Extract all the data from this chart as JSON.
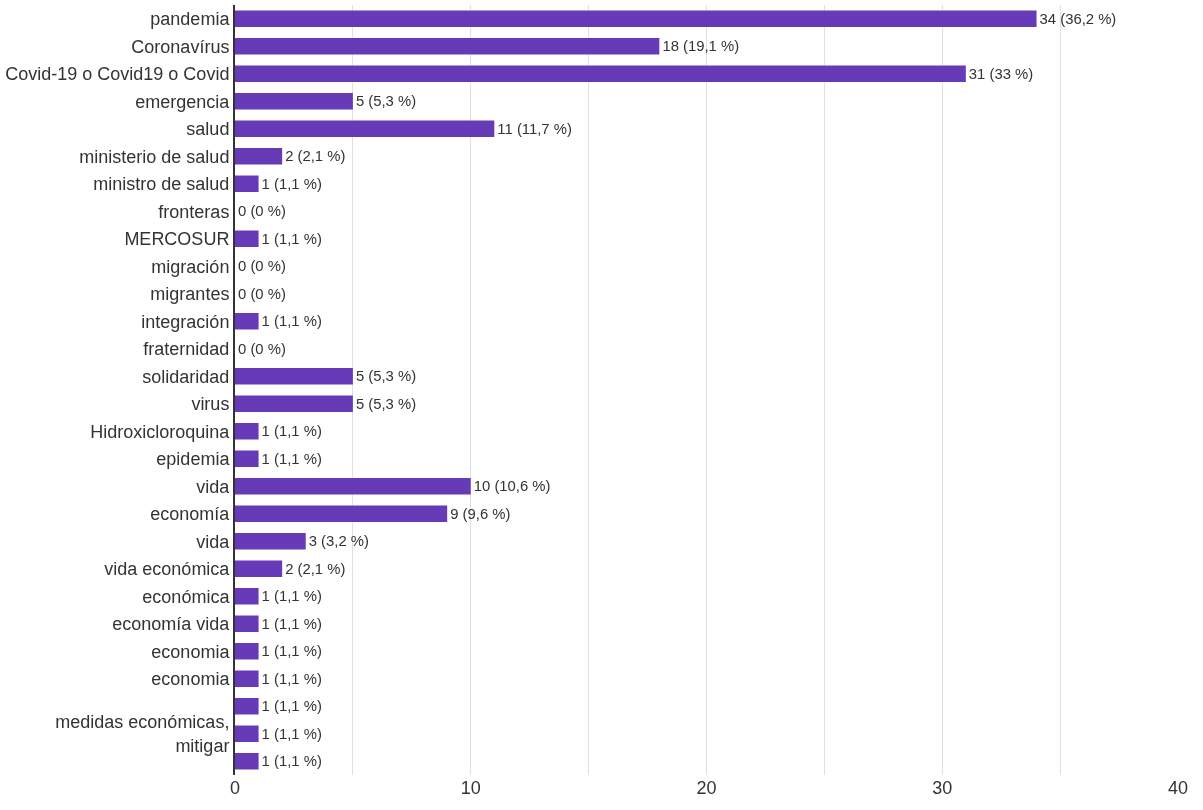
{
  "chart_data": {
    "type": "bar",
    "orientation": "horizontal",
    "color": "#673ab7",
    "categories": [
      "pandemia",
      "Coronavírus",
      "Covid-19 o Covid19 o Covid",
      "emergencia",
      "salud",
      "ministerio de salud",
      "ministro de salud",
      "fronteras",
      "MERCOSUR",
      "migración",
      "migrantes",
      "integración",
      "fraternidad",
      "solidaridad",
      "virus",
      "Hidroxicloroquina",
      "epidemia",
      "vida",
      "economía",
      "vida",
      "vida económica",
      "económica",
      "economía vida",
      "economia",
      "economia",
      null,
      "medidas económicas, mitigar",
      null
    ],
    "values": [
      34,
      18,
      31,
      5,
      11,
      2,
      1,
      0,
      1,
      0,
      0,
      1,
      0,
      5,
      5,
      1,
      1,
      10,
      9,
      3,
      2,
      1,
      1,
      1,
      1,
      1,
      1,
      1
    ],
    "value_labels": [
      "34 (36,2 %)",
      "18 (19,1 %)",
      "31 (33 %)",
      "5 (5,3 %)",
      "11 (11,7 %)",
      "2 (2,1 %)",
      "1 (1,1 %)",
      "0 (0 %)",
      "1 (1,1 %)",
      "0 (0 %)",
      "0 (0 %)",
      "1 (1,1 %)",
      "0 (0 %)",
      "5 (5,3 %)",
      "5 (5,3 %)",
      "1 (1,1 %)",
      "1 (1,1 %)",
      "10 (10,6 %)",
      "9 (9,6 %)",
      "3 (3,2 %)",
      "2 (2,1 %)",
      "1 (1,1 %)",
      "1 (1,1 %)",
      "1 (1,1 %)",
      "1 (1,1 %)",
      "1 (1,1 %)",
      "1 (1,1 %)",
      "1 (1,1 %)"
    ],
    "xlim": [
      0,
      40
    ],
    "xticks": [
      0,
      {
        "value": 5,
        "label": null
      },
      10,
      {
        "value": 15,
        "label": null
      },
      20,
      {
        "value": 25,
        "label": null
      },
      30,
      {
        "value": 35,
        "label": null
      },
      40
    ],
    "grid": "x",
    "legend": false
  }
}
